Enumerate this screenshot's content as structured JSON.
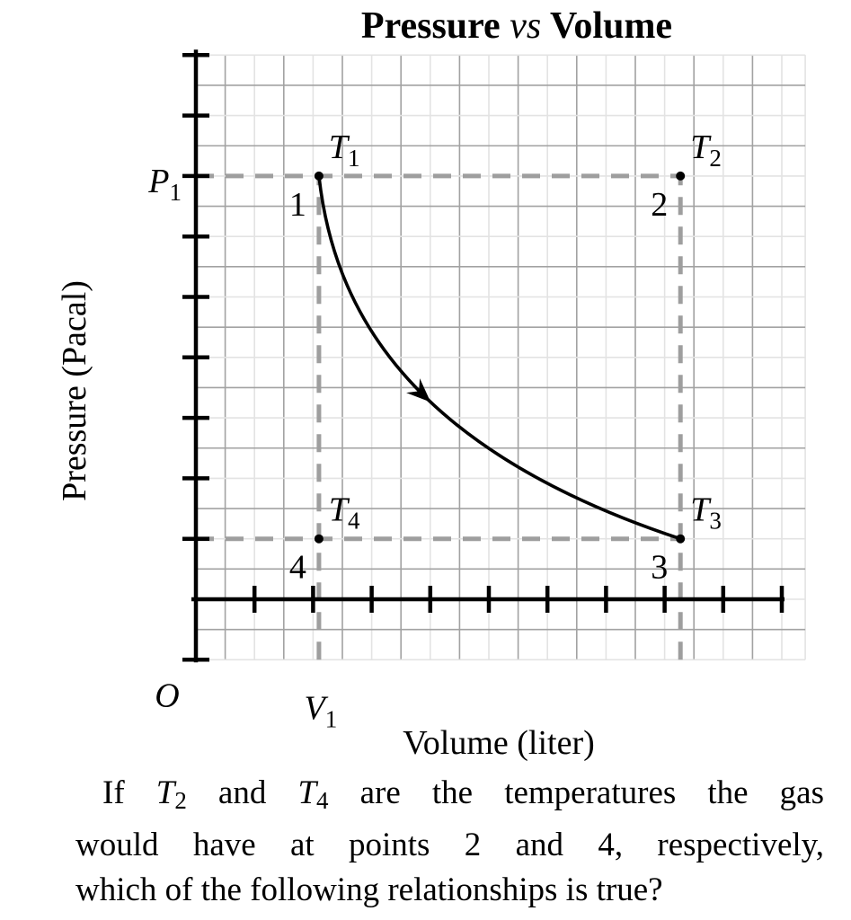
{
  "chart_data": {
    "type": "line",
    "title": "Pressure vs Volume",
    "title_parts": [
      {
        "t": "Pressure ",
        "b": true
      },
      {
        "t": "vs",
        "i": true
      },
      {
        "t": " ",
        "b": true
      },
      {
        "t": "Volume",
        "b": true
      }
    ],
    "xlabel": "Volume (liter)",
    "ylabel": "Pressure (Pacal)",
    "origin_label": "O",
    "grid": "on",
    "x_range": [
      0,
      10.4
    ],
    "y_range": [
      -1,
      9
    ],
    "x_ticks": [
      1,
      2,
      3,
      4,
      5,
      6,
      7,
      8,
      9,
      10
    ],
    "y_ticks": [
      -1,
      1,
      2,
      3,
      4,
      5,
      6,
      7,
      8,
      9
    ],
    "axis_value_labels": [
      {
        "main": "P",
        "sub": "1",
        "axis": "y",
        "value": 7
      },
      {
        "main": "V",
        "sub": "1",
        "axis": "x",
        "value": 2.1
      }
    ],
    "points": [
      {
        "name": "1",
        "temp_main": "T",
        "temp_sub": "1",
        "x": 2.1,
        "y": 7
      },
      {
        "name": "2",
        "temp_main": "T",
        "temp_sub": "2",
        "x": 8.27,
        "y": 7
      },
      {
        "name": "3",
        "temp_main": "T",
        "temp_sub": "3",
        "x": 8.27,
        "y": 1
      },
      {
        "name": "4",
        "temp_main": "T",
        "temp_sub": "4",
        "x": 2.1,
        "y": 1
      }
    ],
    "curve": {
      "from": [
        2.1,
        7
      ],
      "to": [
        8.27,
        1
      ],
      "shape": "isotherm",
      "arrow": true,
      "arrow_t": 0.58
    },
    "dashed_guides": [
      {
        "from": [
          0,
          7
        ],
        "to": [
          8.27,
          7
        ]
      },
      {
        "from": [
          0,
          1
        ],
        "to": [
          8.27,
          1
        ]
      },
      {
        "from": [
          2.1,
          -1
        ],
        "to": [
          2.1,
          7
        ]
      },
      {
        "from": [
          8.27,
          -1
        ],
        "to": [
          8.27,
          7
        ]
      }
    ],
    "colors": {
      "curve": "#000000",
      "point": "#000000",
      "dashed": "#9e9e9e",
      "grid_minor": "#e3e3e3",
      "grid_major": "#a2a2a2",
      "axis": "#000000"
    }
  },
  "question": {
    "lines": [
      {
        "justify": true,
        "indent": true,
        "segments": [
          {
            "t": "If "
          },
          {
            "t": "T",
            "i": true
          },
          {
            "t": "2",
            "sub": true
          },
          {
            "t": " and "
          },
          {
            "t": "T",
            "i": true
          },
          {
            "t": "4",
            "sub": true
          },
          {
            "t": " are the temperatures the gas"
          }
        ]
      },
      {
        "justify": true,
        "indent": false,
        "segments": [
          {
            "t": "would have at points 2 and 4, respectively,"
          }
        ]
      },
      {
        "justify": false,
        "indent": false,
        "segments": [
          {
            "t": "which of the following relationships is true?"
          }
        ]
      }
    ]
  }
}
